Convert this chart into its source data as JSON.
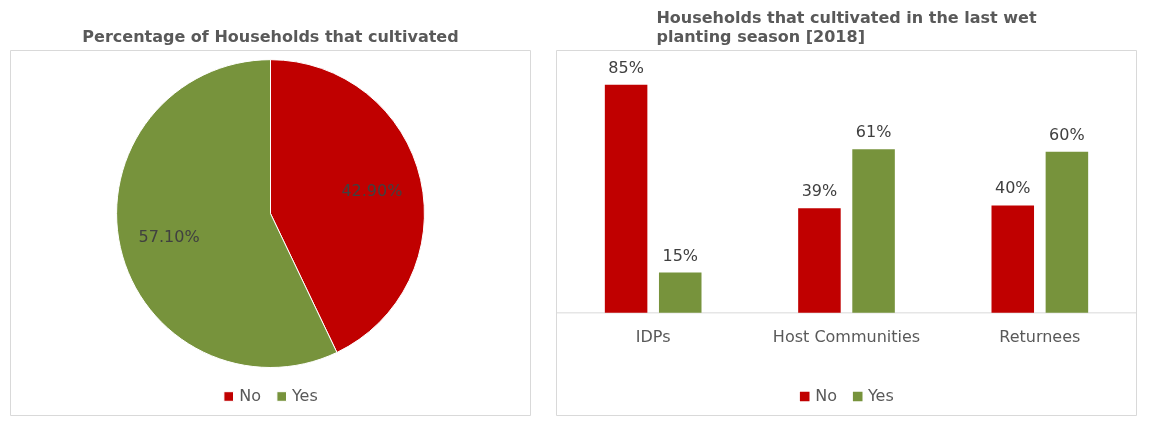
{
  "chart_data": [
    {
      "type": "pie",
      "title": "Percentage of Households that cultivated",
      "categories": [
        "No",
        "Yes"
      ],
      "values": [
        42.9,
        57.1
      ],
      "colors": [
        "#c00000",
        "#77933c"
      ],
      "value_labels": [
        "42.90%",
        "57.10%"
      ],
      "legend": "bottom"
    },
    {
      "type": "bar",
      "title": "Households that cultivated in the last wet planting season [2018]",
      "categories": [
        "IDPs",
        "Host Communities",
        "Returnees"
      ],
      "series": [
        {
          "name": "No",
          "color": "#c00000",
          "values": [
            85,
            39,
            40
          ],
          "value_labels": [
            "85%",
            "39%",
            "40%"
          ]
        },
        {
          "name": "Yes",
          "color": "#77933c",
          "values": [
            15,
            61,
            60
          ],
          "value_labels": [
            "15%",
            "61%",
            "60%"
          ]
        }
      ],
      "legend": "bottom"
    }
  ]
}
